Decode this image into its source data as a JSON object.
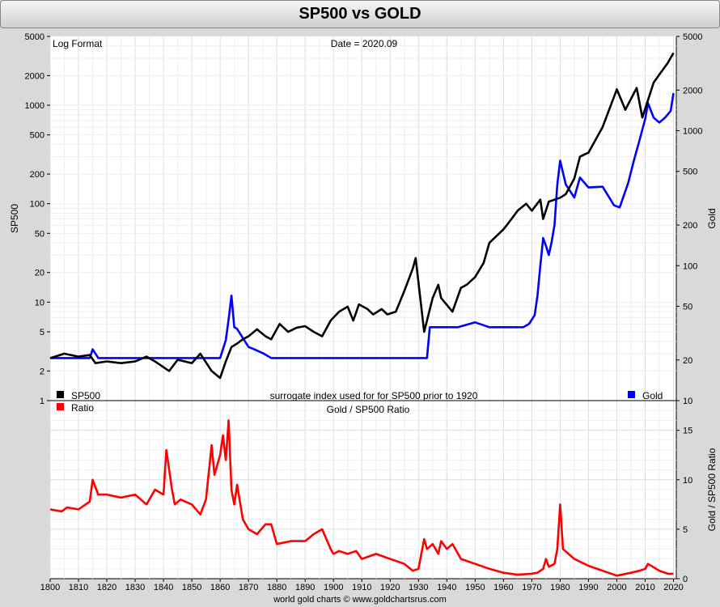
{
  "title": "SP500 vs GOLD",
  "top_panel": {
    "note_left": "Log Format",
    "note_center": "Date = 2020.09",
    "left_axis_label": "SP500",
    "right_axis_label": "Gold",
    "left_ticks": [
      "1",
      "2",
      "5",
      "10",
      "20",
      "50",
      "100",
      "200",
      "500",
      "1000",
      "2000",
      "5000"
    ],
    "right_ticks": [
      "10",
      "20",
      "50",
      "100",
      "200",
      "500",
      "1000",
      "2000",
      "5000"
    ],
    "legend_sp500": "SP500",
    "legend_gold": "Gold",
    "surrogate_note": "surrogate index used for for SP500 prior to 1920"
  },
  "bottom_panel": {
    "title": "Gold / SP500 Ratio",
    "right_axis_label": "Gold / SP500 Ratio",
    "legend_ratio": "Ratio",
    "right_ticks": [
      "0",
      "5",
      "10",
      "15"
    ]
  },
  "x_ticks": [
    "1800",
    "1810",
    "1820",
    "1830",
    "1840",
    "1850",
    "1860",
    "1870",
    "1880",
    "1890",
    "1900",
    "1910",
    "1920",
    "1930",
    "1940",
    "1950",
    "1960",
    "1970",
    "1980",
    "1990",
    "2000",
    "2010",
    "2020"
  ],
  "footer": "world gold charts © www.goldchartsrus.com",
  "colors": {
    "sp500": "#000000",
    "gold": "#0000ff",
    "ratio": "#ff0000"
  },
  "chart_data": [
    {
      "type": "line",
      "title": "SP500 vs GOLD",
      "ylabel": "SP500",
      "y2label": "Gold",
      "yscale": "log",
      "ylim": [
        1,
        5000
      ],
      "y2lim": [
        10,
        5000
      ],
      "xlim": [
        1800,
        2021
      ],
      "legend": "bottom",
      "grid": true,
      "series": [
        {
          "name": "SP500",
          "axis": "left",
          "x": [
            1800,
            1805,
            1810,
            1814,
            1816,
            1820,
            1825,
            1830,
            1834,
            1837,
            1842,
            1845,
            1850,
            1853,
            1857,
            1860,
            1862,
            1864,
            1866,
            1868,
            1870,
            1873,
            1876,
            1878,
            1881,
            1884,
            1887,
            1890,
            1893,
            1896,
            1899,
            1902,
            1905,
            1907,
            1909,
            1912,
            1914,
            1917,
            1919,
            1922,
            1925,
            1928,
            1929,
            1932,
            1935,
            1937,
            1938,
            1942,
            1945,
            1947,
            1950,
            1953,
            1955,
            1960,
            1962,
            1965,
            1968,
            1970,
            1973,
            1974,
            1976,
            1980,
            1982,
            1985,
            1987,
            1990,
            1995,
            2000,
            2003,
            2007,
            2009,
            2013,
            2015,
            2018,
            2020
          ],
          "y": [
            2.7,
            3.0,
            2.8,
            2.9,
            2.4,
            2.5,
            2.4,
            2.5,
            2.8,
            2.5,
            2.0,
            2.6,
            2.4,
            3.0,
            2.0,
            1.7,
            2.5,
            3.5,
            3.8,
            4.2,
            4.5,
            5.3,
            4.5,
            4.2,
            6.0,
            5.0,
            5.5,
            5.7,
            5.0,
            4.5,
            6.5,
            8.0,
            9.0,
            6.5,
            9.5,
            8.5,
            7.5,
            8.5,
            7.5,
            8.0,
            13.0,
            22.0,
            28.0,
            5.0,
            11.0,
            15.0,
            11.0,
            8.0,
            14.0,
            15.0,
            18.0,
            25.0,
            40.0,
            55.0,
            65.0,
            85.0,
            100.0,
            85.0,
            110.0,
            70.0,
            105.0,
            115.0,
            125.0,
            180.0,
            300.0,
            330.0,
            600.0,
            1450.0,
            900.0,
            1500.0,
            750.0,
            1700.0,
            2050.0,
            2700.0,
            3400.0
          ]
        },
        {
          "name": "Gold",
          "axis": "right",
          "x": [
            1800,
            1814,
            1815,
            1817,
            1860,
            1862,
            1863,
            1864,
            1865,
            1866,
            1870,
            1872,
            1875,
            1878,
            1880,
            1933,
            1934,
            1935,
            1944,
            1950,
            1955,
            1960,
            1965,
            1967,
            1969,
            1971,
            1972,
            1973,
            1974,
            1975,
            1976,
            1977,
            1978,
            1979,
            1980,
            1982,
            1985,
            1987,
            1990,
            1995,
            1999,
            2001,
            2004,
            2006,
            2008,
            2010,
            2011,
            2013,
            2015,
            2017,
            2019,
            2020
          ],
          "y": [
            20.67,
            20.67,
            24,
            20.67,
            20.67,
            28,
            40,
            60,
            35,
            34,
            25,
            24,
            22.5,
            20.67,
            20.67,
            20.67,
            35,
            35,
            35,
            38,
            35,
            35,
            35,
            35,
            37,
            43,
            60,
            100,
            160,
            140,
            120,
            150,
            200,
            400,
            600,
            400,
            320,
            450,
            380,
            385,
            280,
            270,
            410,
            600,
            850,
            1220,
            1600,
            1250,
            1150,
            1250,
            1400,
            1900
          ]
        }
      ]
    },
    {
      "type": "line",
      "title": "Gold / SP500 Ratio",
      "y2label": "Gold / SP500 Ratio",
      "y2lim": [
        0,
        18
      ],
      "xlim": [
        1800,
        2021
      ],
      "legend": "top-left",
      "grid": true,
      "series": [
        {
          "name": "Ratio",
          "axis": "right",
          "x": [
            1800,
            1804,
            1806,
            1810,
            1814,
            1815,
            1817,
            1820,
            1825,
            1830,
            1834,
            1837,
            1840,
            1841,
            1843,
            1844,
            1846,
            1850,
            1853,
            1855,
            1857,
            1858,
            1860,
            1861,
            1862,
            1863,
            1864,
            1865,
            1866,
            1868,
            1870,
            1873,
            1876,
            1878,
            1880,
            1885,
            1890,
            1893,
            1896,
            1899,
            1900,
            1902,
            1905,
            1908,
            1910,
            1915,
            1920,
            1925,
            1928,
            1930,
            1932,
            1933,
            1935,
            1937,
            1938,
            1940,
            1942,
            1945,
            1950,
            1955,
            1960,
            1965,
            1970,
            1972,
            1974,
            1975,
            1976,
            1978,
            1979,
            1980,
            1981,
            1985,
            1990,
            1995,
            2000,
            2005,
            2008,
            2010,
            2011,
            2015,
            2018,
            2020
          ],
          "y": [
            7.0,
            6.8,
            7.2,
            7.0,
            7.8,
            10.0,
            8.5,
            8.5,
            8.2,
            8.5,
            7.5,
            9.0,
            8.5,
            13.0,
            9.0,
            7.5,
            8.0,
            7.5,
            6.5,
            8.0,
            13.5,
            10.5,
            12.5,
            14.5,
            12.0,
            16.0,
            9.0,
            7.5,
            9.5,
            6.0,
            5.0,
            4.5,
            5.5,
            5.5,
            3.5,
            3.8,
            3.8,
            4.5,
            5.0,
            3.0,
            2.5,
            2.8,
            2.5,
            2.8,
            2.0,
            2.5,
            2.0,
            1.5,
            0.8,
            1.0,
            4.0,
            3.0,
            3.5,
            2.5,
            3.8,
            3.0,
            3.5,
            2.0,
            1.5,
            1.0,
            0.6,
            0.4,
            0.5,
            0.6,
            1.0,
            2.0,
            1.2,
            1.5,
            3.0,
            7.5,
            3.0,
            2.0,
            1.3,
            0.8,
            0.3,
            0.6,
            0.8,
            1.0,
            1.5,
            0.8,
            0.5,
            0.5
          ]
        }
      ]
    }
  ]
}
